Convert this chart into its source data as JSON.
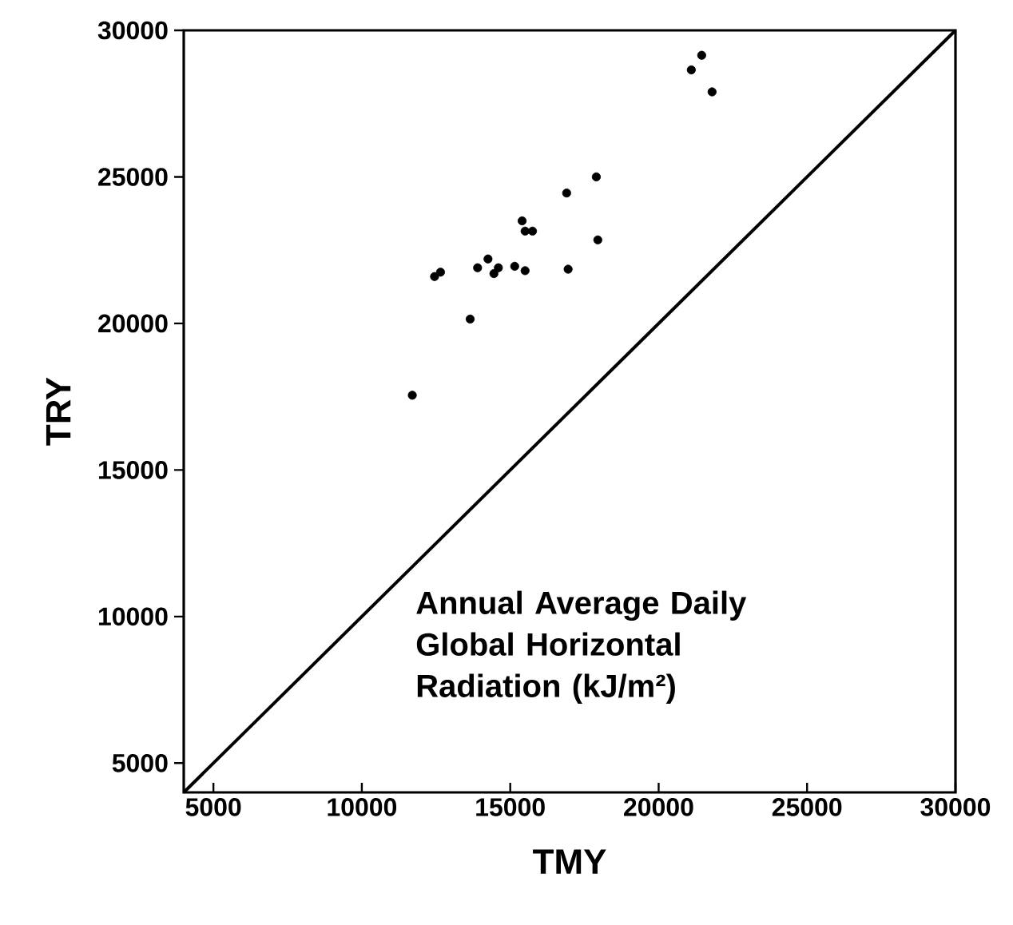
{
  "chart_data": {
    "type": "scatter",
    "xlabel": "TMY",
    "ylabel": "TRY",
    "annotations": [
      "Annual Average Daily Global Horizontal Radiation (kJ/m²)"
    ],
    "xlim": [
      4000,
      30000
    ],
    "ylim": [
      4000,
      30000
    ],
    "xticks": [
      5000,
      10000,
      15000,
      20000,
      25000,
      30000
    ],
    "yticks": [
      5000,
      10000,
      15000,
      20000,
      25000,
      30000
    ],
    "series": [
      {
        "marker": "circle",
        "color": "#000000",
        "x": [
          21100,
          21450,
          21800,
          17900,
          16900,
          15400,
          15500,
          15750,
          17950,
          12450,
          12650,
          13900,
          14250,
          14450,
          14600,
          15150,
          15500,
          16950,
          13650,
          11700
        ],
        "values": [
          28650,
          29150,
          27900,
          25000,
          24450,
          23500,
          23150,
          23150,
          22850,
          21600,
          21750,
          21900,
          22200,
          21700,
          21900,
          21950,
          21800,
          21850,
          20150,
          17550
        ]
      },
      {
        "type": "line",
        "marker": "none",
        "color": "#000000",
        "x": [
          4000,
          30000
        ],
        "values": [
          4000,
          30000
        ]
      }
    ]
  }
}
